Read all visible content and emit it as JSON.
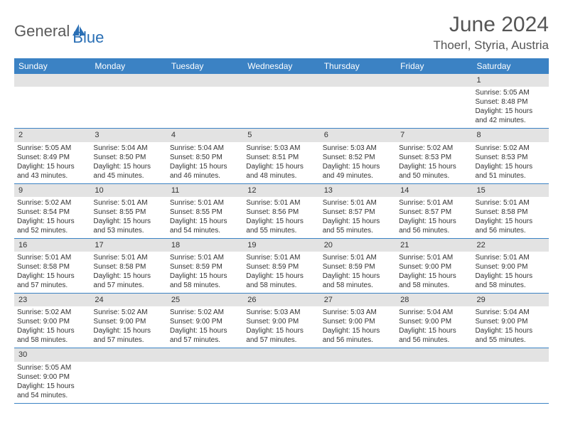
{
  "brand": {
    "text1": "General",
    "text2": "Blue"
  },
  "title": "June 2024",
  "location": "Thoerl, Styria, Austria",
  "colors": {
    "header_bg": "#3b82c4",
    "header_text": "#ffffff",
    "daynum_bg": "#e3e3e3",
    "border": "#3b82c4",
    "logo_gray": "#5a5a5a",
    "logo_blue": "#2a6fb5",
    "text": "#333333"
  },
  "weekdays": [
    "Sunday",
    "Monday",
    "Tuesday",
    "Wednesday",
    "Thursday",
    "Friday",
    "Saturday"
  ],
  "weeks": [
    [
      null,
      null,
      null,
      null,
      null,
      null,
      {
        "n": "1",
        "sunrise": "5:05 AM",
        "sunset": "8:48 PM",
        "dl1": "Daylight: 15 hours",
        "dl2": "and 42 minutes."
      }
    ],
    [
      {
        "n": "2",
        "sunrise": "5:05 AM",
        "sunset": "8:49 PM",
        "dl1": "Daylight: 15 hours",
        "dl2": "and 43 minutes."
      },
      {
        "n": "3",
        "sunrise": "5:04 AM",
        "sunset": "8:50 PM",
        "dl1": "Daylight: 15 hours",
        "dl2": "and 45 minutes."
      },
      {
        "n": "4",
        "sunrise": "5:04 AM",
        "sunset": "8:50 PM",
        "dl1": "Daylight: 15 hours",
        "dl2": "and 46 minutes."
      },
      {
        "n": "5",
        "sunrise": "5:03 AM",
        "sunset": "8:51 PM",
        "dl1": "Daylight: 15 hours",
        "dl2": "and 48 minutes."
      },
      {
        "n": "6",
        "sunrise": "5:03 AM",
        "sunset": "8:52 PM",
        "dl1": "Daylight: 15 hours",
        "dl2": "and 49 minutes."
      },
      {
        "n": "7",
        "sunrise": "5:02 AM",
        "sunset": "8:53 PM",
        "dl1": "Daylight: 15 hours",
        "dl2": "and 50 minutes."
      },
      {
        "n": "8",
        "sunrise": "5:02 AM",
        "sunset": "8:53 PM",
        "dl1": "Daylight: 15 hours",
        "dl2": "and 51 minutes."
      }
    ],
    [
      {
        "n": "9",
        "sunrise": "5:02 AM",
        "sunset": "8:54 PM",
        "dl1": "Daylight: 15 hours",
        "dl2": "and 52 minutes."
      },
      {
        "n": "10",
        "sunrise": "5:01 AM",
        "sunset": "8:55 PM",
        "dl1": "Daylight: 15 hours",
        "dl2": "and 53 minutes."
      },
      {
        "n": "11",
        "sunrise": "5:01 AM",
        "sunset": "8:55 PM",
        "dl1": "Daylight: 15 hours",
        "dl2": "and 54 minutes."
      },
      {
        "n": "12",
        "sunrise": "5:01 AM",
        "sunset": "8:56 PM",
        "dl1": "Daylight: 15 hours",
        "dl2": "and 55 minutes."
      },
      {
        "n": "13",
        "sunrise": "5:01 AM",
        "sunset": "8:57 PM",
        "dl1": "Daylight: 15 hours",
        "dl2": "and 55 minutes."
      },
      {
        "n": "14",
        "sunrise": "5:01 AM",
        "sunset": "8:57 PM",
        "dl1": "Daylight: 15 hours",
        "dl2": "and 56 minutes."
      },
      {
        "n": "15",
        "sunrise": "5:01 AM",
        "sunset": "8:58 PM",
        "dl1": "Daylight: 15 hours",
        "dl2": "and 56 minutes."
      }
    ],
    [
      {
        "n": "16",
        "sunrise": "5:01 AM",
        "sunset": "8:58 PM",
        "dl1": "Daylight: 15 hours",
        "dl2": "and 57 minutes."
      },
      {
        "n": "17",
        "sunrise": "5:01 AM",
        "sunset": "8:58 PM",
        "dl1": "Daylight: 15 hours",
        "dl2": "and 57 minutes."
      },
      {
        "n": "18",
        "sunrise": "5:01 AM",
        "sunset": "8:59 PM",
        "dl1": "Daylight: 15 hours",
        "dl2": "and 58 minutes."
      },
      {
        "n": "19",
        "sunrise": "5:01 AM",
        "sunset": "8:59 PM",
        "dl1": "Daylight: 15 hours",
        "dl2": "and 58 minutes."
      },
      {
        "n": "20",
        "sunrise": "5:01 AM",
        "sunset": "8:59 PM",
        "dl1": "Daylight: 15 hours",
        "dl2": "and 58 minutes."
      },
      {
        "n": "21",
        "sunrise": "5:01 AM",
        "sunset": "9:00 PM",
        "dl1": "Daylight: 15 hours",
        "dl2": "and 58 minutes."
      },
      {
        "n": "22",
        "sunrise": "5:01 AM",
        "sunset": "9:00 PM",
        "dl1": "Daylight: 15 hours",
        "dl2": "and 58 minutes."
      }
    ],
    [
      {
        "n": "23",
        "sunrise": "5:02 AM",
        "sunset": "9:00 PM",
        "dl1": "Daylight: 15 hours",
        "dl2": "and 58 minutes."
      },
      {
        "n": "24",
        "sunrise": "5:02 AM",
        "sunset": "9:00 PM",
        "dl1": "Daylight: 15 hours",
        "dl2": "and 57 minutes."
      },
      {
        "n": "25",
        "sunrise": "5:02 AM",
        "sunset": "9:00 PM",
        "dl1": "Daylight: 15 hours",
        "dl2": "and 57 minutes."
      },
      {
        "n": "26",
        "sunrise": "5:03 AM",
        "sunset": "9:00 PM",
        "dl1": "Daylight: 15 hours",
        "dl2": "and 57 minutes."
      },
      {
        "n": "27",
        "sunrise": "5:03 AM",
        "sunset": "9:00 PM",
        "dl1": "Daylight: 15 hours",
        "dl2": "and 56 minutes."
      },
      {
        "n": "28",
        "sunrise": "5:04 AM",
        "sunset": "9:00 PM",
        "dl1": "Daylight: 15 hours",
        "dl2": "and 56 minutes."
      },
      {
        "n": "29",
        "sunrise": "5:04 AM",
        "sunset": "9:00 PM",
        "dl1": "Daylight: 15 hours",
        "dl2": "and 55 minutes."
      }
    ],
    [
      {
        "n": "30",
        "sunrise": "5:05 AM",
        "sunset": "9:00 PM",
        "dl1": "Daylight: 15 hours",
        "dl2": "and 54 minutes."
      },
      null,
      null,
      null,
      null,
      null,
      null
    ]
  ],
  "labels": {
    "sunrise": "Sunrise: ",
    "sunset": "Sunset: "
  }
}
